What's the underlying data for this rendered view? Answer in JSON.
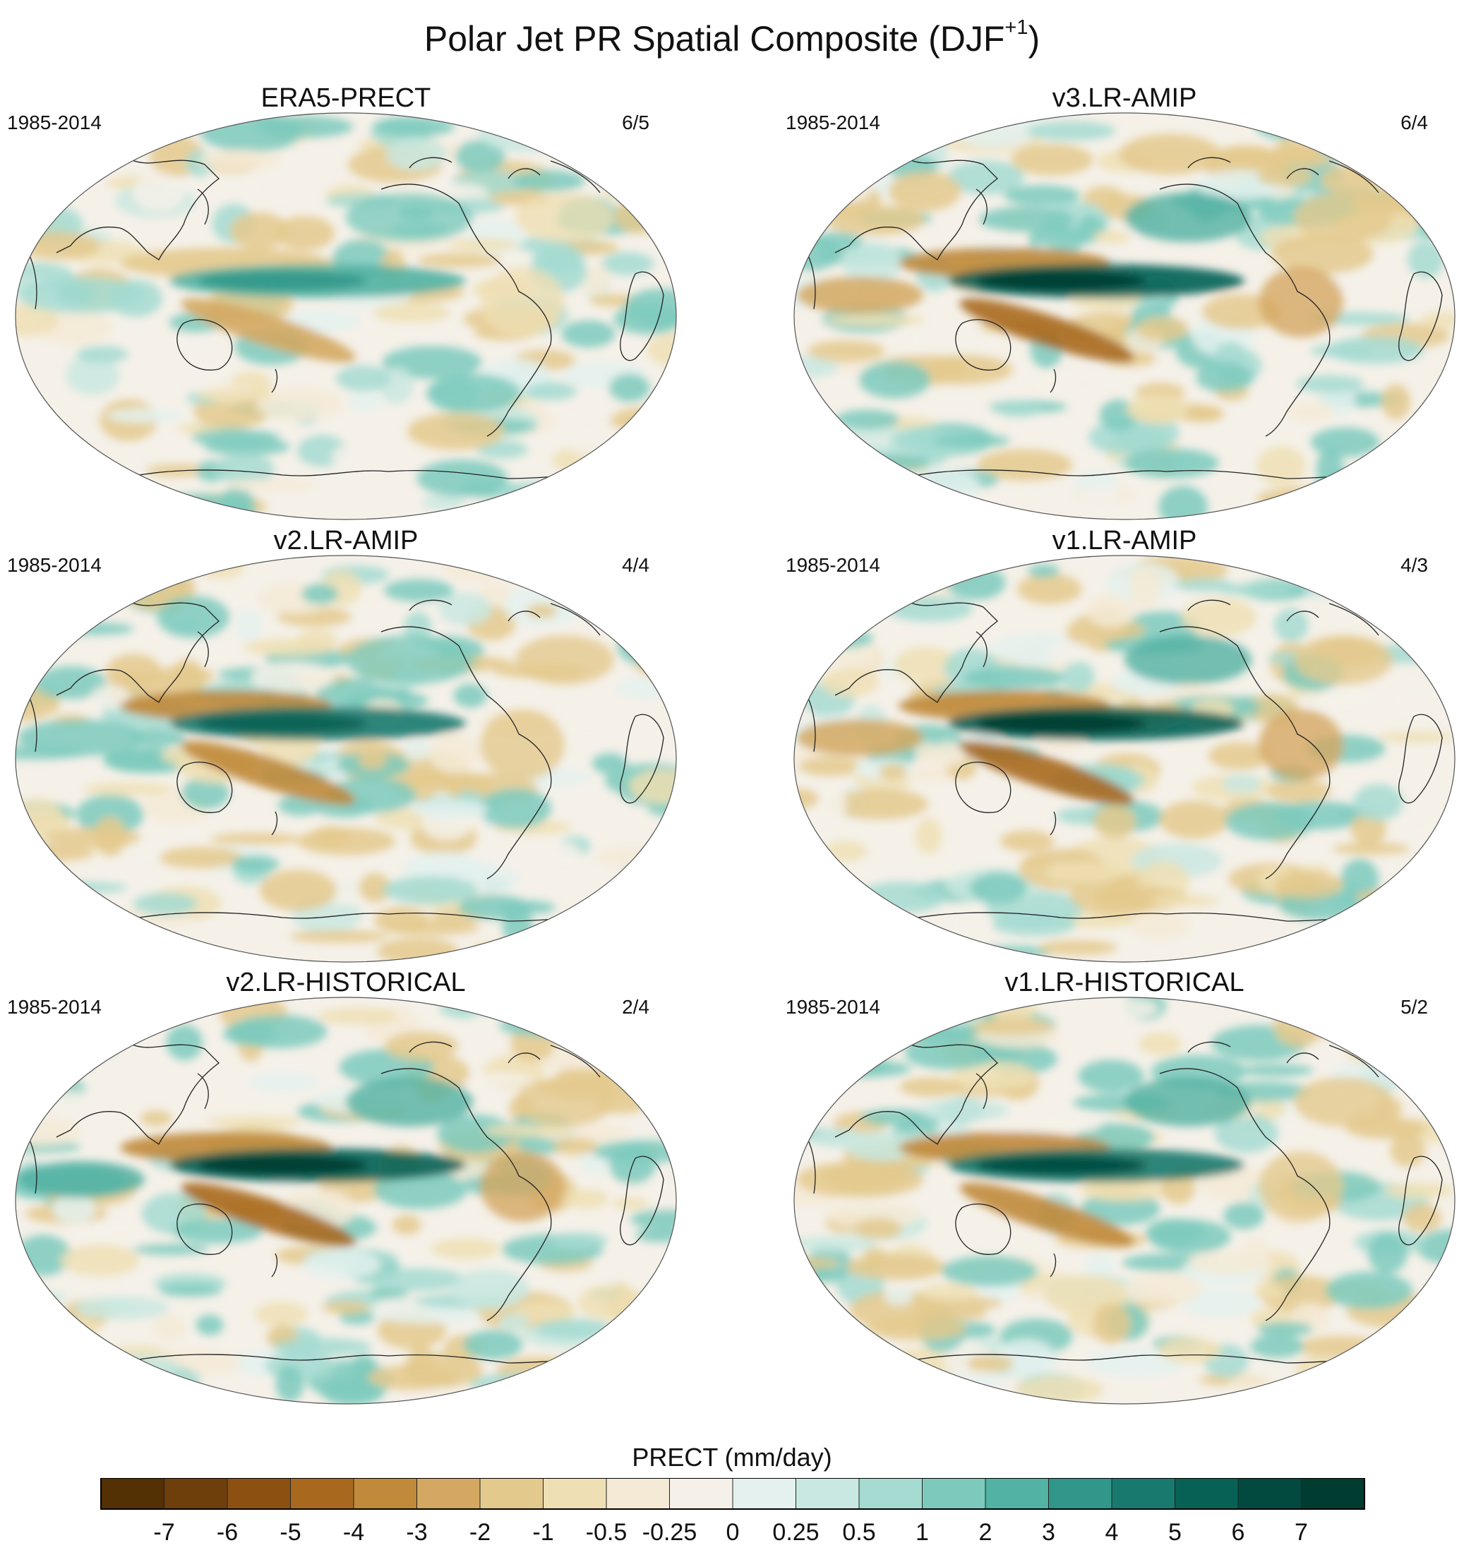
{
  "figure": {
    "title": "Polar Jet PR Spatial Composite (DJF",
    "title_sup": "+1",
    "title_close": ")"
  },
  "chart_data": {
    "type": "heatmap",
    "projection": "Robinson (Pacific-centered, global map)",
    "variable": "PRECT",
    "units": "mm/day",
    "panels": [
      {
        "title": "ERA5-PRECT",
        "years": "1985-2014",
        "count": "6/5"
      },
      {
        "title": "v3.LR-AMIP",
        "years": "1985-2014",
        "count": "6/4"
      },
      {
        "title": "v2.LR-AMIP",
        "years": "1985-2014",
        "count": "4/4"
      },
      {
        "title": "v1.LR-AMIP",
        "years": "1985-2014",
        "count": "4/3"
      },
      {
        "title": "v2.LR-HISTORICAL",
        "years": "1985-2014",
        "count": "2/4"
      },
      {
        "title": "v1.LR-HISTORICAL",
        "years": "1985-2014",
        "count": "5/2"
      }
    ],
    "colorbar": {
      "title": "PRECT (mm/day)",
      "levels": [
        "-7",
        "-6",
        "-5",
        "-4",
        "-3",
        "-2",
        "-1",
        "-0.5",
        "-0.25",
        "0",
        "0.25",
        "0.5",
        "1",
        "2",
        "3",
        "4",
        "5",
        "6",
        "7"
      ],
      "colors": [
        "#543005",
        "#6e3e0b",
        "#8c5111",
        "#a8691f",
        "#c08a3a",
        "#d4a862",
        "#e4c98d",
        "#efdfb4",
        "#f4ead6",
        "#f5f1e9",
        "#e4f1ee",
        "#c9e8e1",
        "#a5dbd1",
        "#7dcabd",
        "#52b2a3",
        "#30978a",
        "#18796e",
        "#076154",
        "#024a3f",
        "#003c30"
      ]
    }
  }
}
